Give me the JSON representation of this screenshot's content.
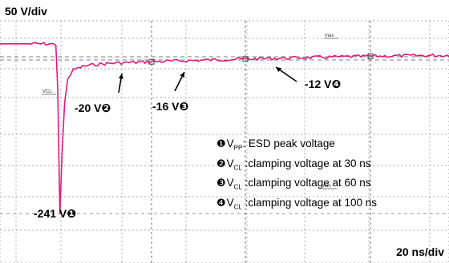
{
  "chart_data": {
    "type": "line",
    "vertical_scale": "50 V/div",
    "horizontal_scale": "20 ns/div",
    "trace_color": "#e0197d",
    "series": [
      {
        "x": [
          -10,
          -6,
          -3,
          -1.5,
          -0.6,
          0,
          0.7,
          1.4,
          2.2,
          3.2,
          5,
          8,
          12,
          18,
          25,
          30,
          38,
          45,
          52,
          60,
          70,
          80,
          90,
          100,
          110,
          120,
          130,
          140,
          150,
          158
        ],
        "y": [
          6,
          6,
          6,
          5.5,
          5,
          -60,
          -241,
          -150,
          -80,
          -45,
          -32,
          -27,
          -24,
          -22,
          -21,
          -20,
          -19,
          -18,
          -17,
          -16,
          -15,
          -14,
          -13,
          -12,
          -11.5,
          -11,
          -10.5,
          -10,
          -9,
          -8
        ]
      }
    ],
    "annotations": [
      {
        "id": "vpp",
        "text": "-241 V",
        "marker": "❶",
        "x": 0.7,
        "y": -241
      },
      {
        "id": "vcl30",
        "text": "-20 V",
        "marker": "❷",
        "x": 30,
        "y": -20
      },
      {
        "id": "vcl60",
        "text": "-16 V",
        "marker": "❸",
        "x": 60,
        "y": -16
      },
      {
        "id": "vcl100",
        "text": "-12 V",
        "marker": "❹",
        "x": 100,
        "y": -12
      }
    ],
    "legend": [
      {
        "marker": "❶",
        "sym": "V",
        "sub": "PP",
        "desc": ": ESD peak voltage"
      },
      {
        "marker": "❷",
        "sym": "V",
        "sub": "CL",
        "desc": " :clamping voltage at 30 ns"
      },
      {
        "marker": "❸",
        "sym": "V",
        "sub": "CL",
        "desc": " :clamping voltage at 60 ns"
      },
      {
        "marker": "❹",
        "sym": "V",
        "sub": "CL",
        "desc": " :clamping voltage at 100 ns"
      }
    ],
    "cursor_tags": [
      "max",
      "VCL",
      "min"
    ]
  }
}
